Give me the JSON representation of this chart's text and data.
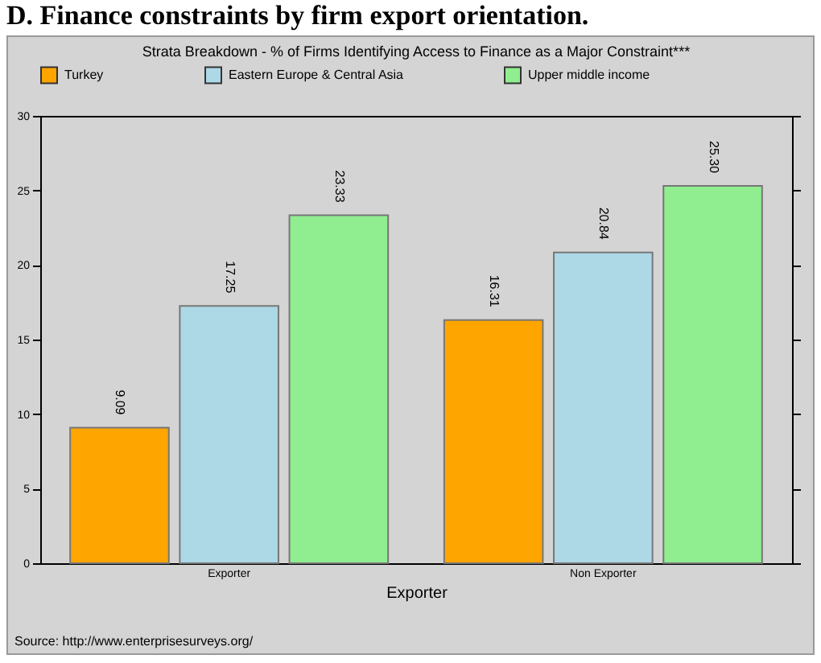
{
  "chart_data": {
    "type": "bar",
    "title": "D. Finance constraints by firm export orientation.",
    "subtitle": "Strata Breakdown - % of Firms Identifying Access to Finance as a Major Constraint***",
    "xlabel": "Exporter",
    "categories": [
      "Exporter",
      "Non Exporter"
    ],
    "series": [
      {
        "name": "Turkey",
        "color": "#ffa500",
        "values": [
          9.09,
          16.31
        ],
        "value_labels": [
          "9.09",
          "16.31"
        ]
      },
      {
        "name": "Eastern Europe & Central Asia",
        "color": "#add8e6",
        "values": [
          17.25,
          20.84
        ],
        "value_labels": [
          "17.25",
          "20.84"
        ]
      },
      {
        "name": "Upper middle income",
        "color": "#90ee90",
        "values": [
          23.33,
          25.3
        ],
        "value_labels": [
          "23.33",
          "25.30"
        ]
      }
    ],
    "ylim": [
      0,
      30
    ],
    "yticks": [
      0,
      5,
      10,
      15,
      20,
      25,
      30
    ],
    "grid": false,
    "legend": "top",
    "annotations": [
      "Source: http://www.enterprisesurveys.org/"
    ]
  }
}
